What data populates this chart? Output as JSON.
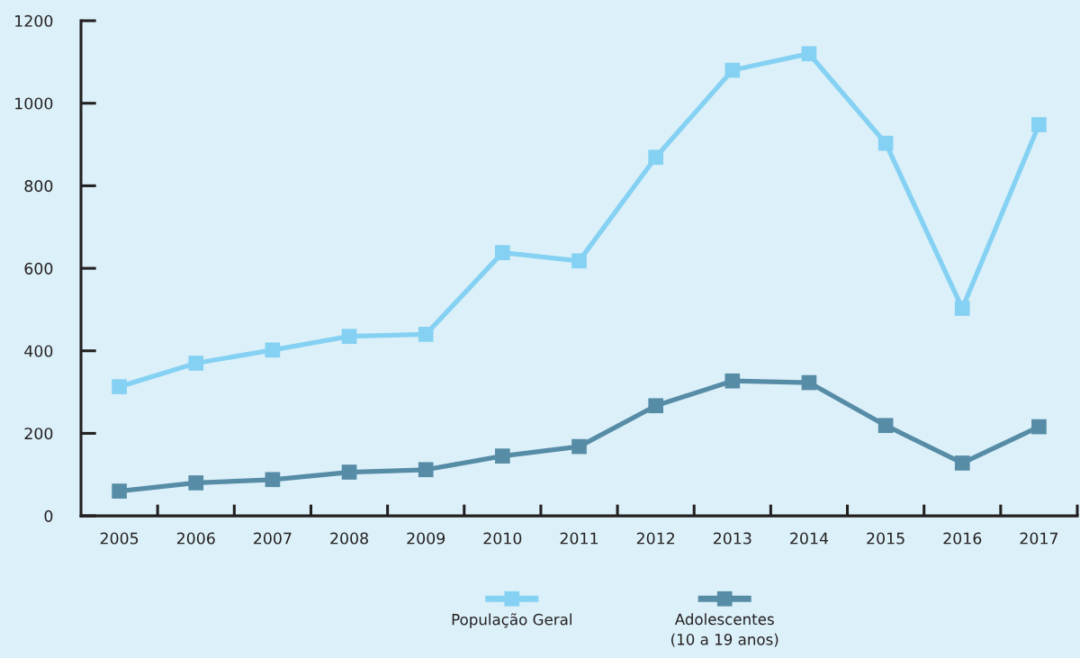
{
  "chart_data": {
    "type": "line",
    "categories": [
      "2005",
      "2006",
      "2007",
      "2008",
      "2009",
      "2010",
      "2011",
      "2012",
      "2013",
      "2014",
      "2015",
      "2016",
      "2017"
    ],
    "series": [
      {
        "name": "População Geral",
        "color": "#85d1f3",
        "values": [
          313,
          370,
          402,
          435,
          440,
          638,
          618,
          869,
          1080,
          1120,
          903,
          503,
          948
        ]
      },
      {
        "name": "Adolescentes\n(10 a 19 anos)",
        "color": "#578ca7",
        "values": [
          60,
          80,
          88,
          106,
          112,
          145,
          168,
          267,
          327,
          323,
          219,
          128,
          216
        ]
      }
    ],
    "ylim": [
      0,
      1200
    ],
    "yticks": [
      0,
      200,
      400,
      600,
      800,
      1000,
      1200
    ],
    "grid": false,
    "legend": "bottom",
    "marker": "square",
    "line_style": "solid"
  }
}
